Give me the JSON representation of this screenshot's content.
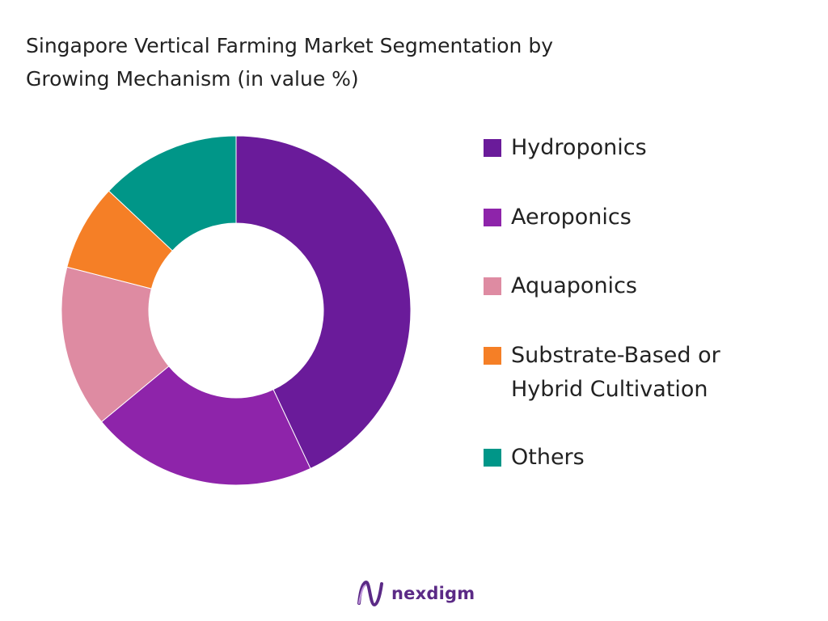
{
  "chart_data": {
    "type": "pie",
    "title": "Singapore Vertical Farming Market Segmentation by\nGrowing Mechanism (in value %)",
    "categories": [
      "Hydroponics",
      "Aeroponics",
      "Aquaponics",
      "Substrate-Based or\nHybrid Cultivation",
      "Others"
    ],
    "values": [
      43,
      21,
      15,
      8,
      13
    ],
    "colors": [
      "#6a1b9a",
      "#8e24aa",
      "#de8ba2",
      "#f57f26",
      "#009688"
    ],
    "legend_position": "right",
    "donut": true
  },
  "branding": {
    "logo_text": "nexdigm",
    "logo_color": "#5b2a86"
  }
}
